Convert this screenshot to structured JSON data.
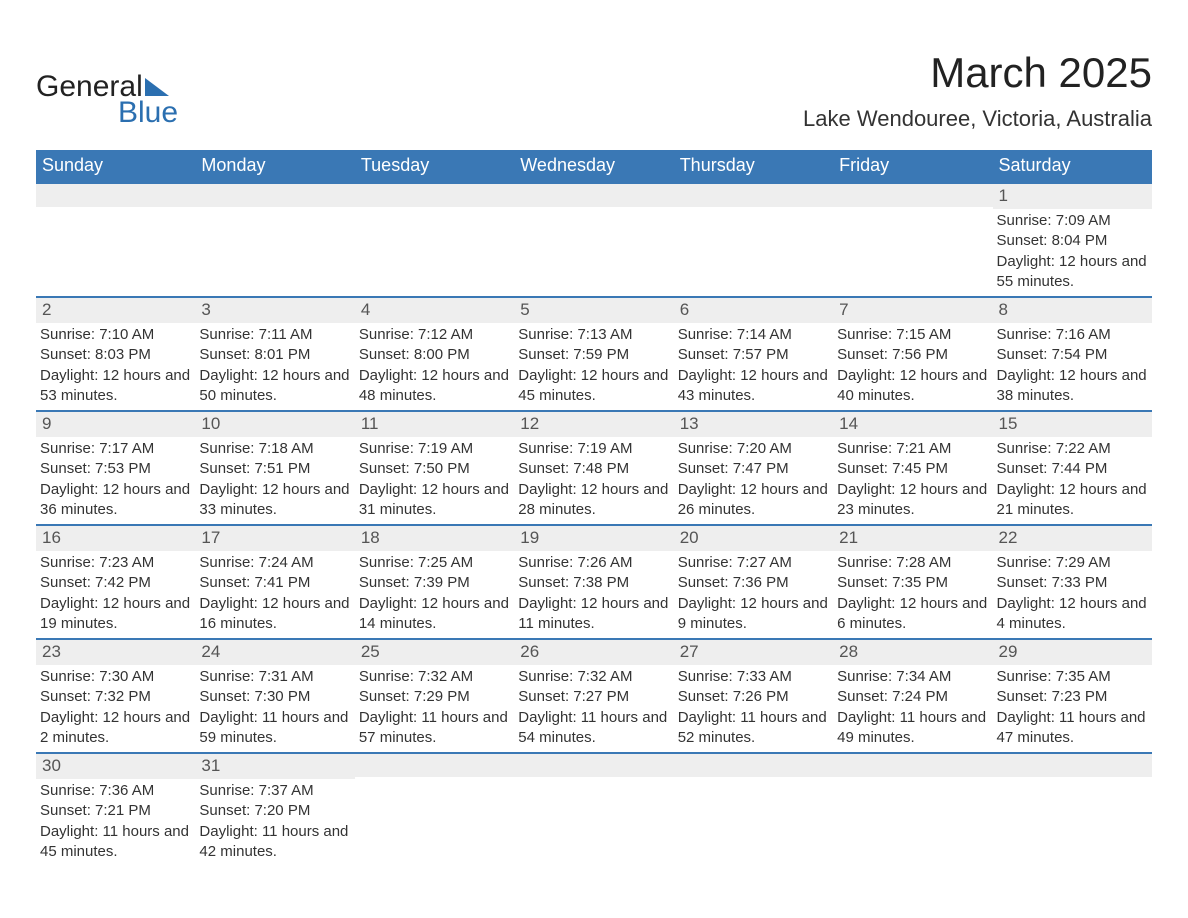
{
  "brand": {
    "name": "General",
    "sub": "Blue"
  },
  "title": "March 2025",
  "location": "Lake Wendouree, Victoria, Australia",
  "colors": {
    "header_bg": "#3a78b5",
    "header_text": "#ffffff",
    "daynum_bg": "#eeeeee",
    "row_border": "#3a78b5",
    "body_text": "#333333",
    "logo_blue": "#2b6fb0"
  },
  "weekdays": [
    "Sunday",
    "Monday",
    "Tuesday",
    "Wednesday",
    "Thursday",
    "Friday",
    "Saturday"
  ],
  "labels": {
    "sunrise": "Sunrise",
    "sunset": "Sunset",
    "daylight": "Daylight"
  },
  "weeks": [
    [
      {
        "day": "",
        "sunrise": "",
        "sunset": "",
        "daylight": ""
      },
      {
        "day": "",
        "sunrise": "",
        "sunset": "",
        "daylight": ""
      },
      {
        "day": "",
        "sunrise": "",
        "sunset": "",
        "daylight": ""
      },
      {
        "day": "",
        "sunrise": "",
        "sunset": "",
        "daylight": ""
      },
      {
        "day": "",
        "sunrise": "",
        "sunset": "",
        "daylight": ""
      },
      {
        "day": "",
        "sunrise": "",
        "sunset": "",
        "daylight": ""
      },
      {
        "day": "1",
        "sunrise": "7:09 AM",
        "sunset": "8:04 PM",
        "daylight": "12 hours and 55 minutes."
      }
    ],
    [
      {
        "day": "2",
        "sunrise": "7:10 AM",
        "sunset": "8:03 PM",
        "daylight": "12 hours and 53 minutes."
      },
      {
        "day": "3",
        "sunrise": "7:11 AM",
        "sunset": "8:01 PM",
        "daylight": "12 hours and 50 minutes."
      },
      {
        "day": "4",
        "sunrise": "7:12 AM",
        "sunset": "8:00 PM",
        "daylight": "12 hours and 48 minutes."
      },
      {
        "day": "5",
        "sunrise": "7:13 AM",
        "sunset": "7:59 PM",
        "daylight": "12 hours and 45 minutes."
      },
      {
        "day": "6",
        "sunrise": "7:14 AM",
        "sunset": "7:57 PM",
        "daylight": "12 hours and 43 minutes."
      },
      {
        "day": "7",
        "sunrise": "7:15 AM",
        "sunset": "7:56 PM",
        "daylight": "12 hours and 40 minutes."
      },
      {
        "day": "8",
        "sunrise": "7:16 AM",
        "sunset": "7:54 PM",
        "daylight": "12 hours and 38 minutes."
      }
    ],
    [
      {
        "day": "9",
        "sunrise": "7:17 AM",
        "sunset": "7:53 PM",
        "daylight": "12 hours and 36 minutes."
      },
      {
        "day": "10",
        "sunrise": "7:18 AM",
        "sunset": "7:51 PM",
        "daylight": "12 hours and 33 minutes."
      },
      {
        "day": "11",
        "sunrise": "7:19 AM",
        "sunset": "7:50 PM",
        "daylight": "12 hours and 31 minutes."
      },
      {
        "day": "12",
        "sunrise": "7:19 AM",
        "sunset": "7:48 PM",
        "daylight": "12 hours and 28 minutes."
      },
      {
        "day": "13",
        "sunrise": "7:20 AM",
        "sunset": "7:47 PM",
        "daylight": "12 hours and 26 minutes."
      },
      {
        "day": "14",
        "sunrise": "7:21 AM",
        "sunset": "7:45 PM",
        "daylight": "12 hours and 23 minutes."
      },
      {
        "day": "15",
        "sunrise": "7:22 AM",
        "sunset": "7:44 PM",
        "daylight": "12 hours and 21 minutes."
      }
    ],
    [
      {
        "day": "16",
        "sunrise": "7:23 AM",
        "sunset": "7:42 PM",
        "daylight": "12 hours and 19 minutes."
      },
      {
        "day": "17",
        "sunrise": "7:24 AM",
        "sunset": "7:41 PM",
        "daylight": "12 hours and 16 minutes."
      },
      {
        "day": "18",
        "sunrise": "7:25 AM",
        "sunset": "7:39 PM",
        "daylight": "12 hours and 14 minutes."
      },
      {
        "day": "19",
        "sunrise": "7:26 AM",
        "sunset": "7:38 PM",
        "daylight": "12 hours and 11 minutes."
      },
      {
        "day": "20",
        "sunrise": "7:27 AM",
        "sunset": "7:36 PM",
        "daylight": "12 hours and 9 minutes."
      },
      {
        "day": "21",
        "sunrise": "7:28 AM",
        "sunset": "7:35 PM",
        "daylight": "12 hours and 6 minutes."
      },
      {
        "day": "22",
        "sunrise": "7:29 AM",
        "sunset": "7:33 PM",
        "daylight": "12 hours and 4 minutes."
      }
    ],
    [
      {
        "day": "23",
        "sunrise": "7:30 AM",
        "sunset": "7:32 PM",
        "daylight": "12 hours and 2 minutes."
      },
      {
        "day": "24",
        "sunrise": "7:31 AM",
        "sunset": "7:30 PM",
        "daylight": "11 hours and 59 minutes."
      },
      {
        "day": "25",
        "sunrise": "7:32 AM",
        "sunset": "7:29 PM",
        "daylight": "11 hours and 57 minutes."
      },
      {
        "day": "26",
        "sunrise": "7:32 AM",
        "sunset": "7:27 PM",
        "daylight": "11 hours and 54 minutes."
      },
      {
        "day": "27",
        "sunrise": "7:33 AM",
        "sunset": "7:26 PM",
        "daylight": "11 hours and 52 minutes."
      },
      {
        "day": "28",
        "sunrise": "7:34 AM",
        "sunset": "7:24 PM",
        "daylight": "11 hours and 49 minutes."
      },
      {
        "day": "29",
        "sunrise": "7:35 AM",
        "sunset": "7:23 PM",
        "daylight": "11 hours and 47 minutes."
      }
    ],
    [
      {
        "day": "30",
        "sunrise": "7:36 AM",
        "sunset": "7:21 PM",
        "daylight": "11 hours and 45 minutes."
      },
      {
        "day": "31",
        "sunrise": "7:37 AM",
        "sunset": "7:20 PM",
        "daylight": "11 hours and 42 minutes."
      },
      {
        "day": "",
        "sunrise": "",
        "sunset": "",
        "daylight": ""
      },
      {
        "day": "",
        "sunrise": "",
        "sunset": "",
        "daylight": ""
      },
      {
        "day": "",
        "sunrise": "",
        "sunset": "",
        "daylight": ""
      },
      {
        "day": "",
        "sunrise": "",
        "sunset": "",
        "daylight": ""
      },
      {
        "day": "",
        "sunrise": "",
        "sunset": "",
        "daylight": ""
      }
    ]
  ]
}
